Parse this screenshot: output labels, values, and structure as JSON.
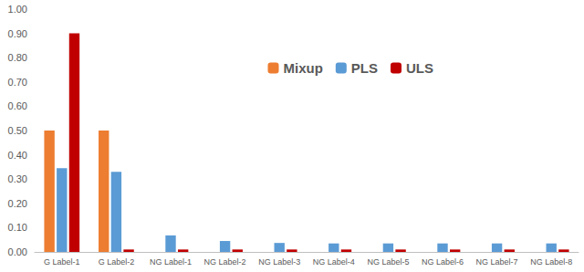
{
  "chart_data": {
    "type": "bar",
    "categories": [
      "G Label-1",
      "G Label-2",
      "NG Label-1",
      "NG Label-2",
      "NG Label-3",
      "NG Label-4",
      "NG Label-5",
      "NG Label-6",
      "NG Label-7",
      "NG Label-8"
    ],
    "series": [
      {
        "name": "Mixup",
        "color": "#ED7D31",
        "values": [
          0.5,
          0.5,
          0,
          0,
          0,
          0,
          0,
          0,
          0,
          0
        ]
      },
      {
        "name": "PLS",
        "color": "#5B9BD5",
        "values": [
          0.345,
          0.33,
          0.068,
          0.045,
          0.037,
          0.035,
          0.035,
          0.035,
          0.035,
          0.035
        ]
      },
      {
        "name": "ULS",
        "color": "#C00000",
        "values": [
          0.9,
          0.01,
          0.01,
          0.01,
          0.01,
          0.01,
          0.01,
          0.01,
          0.01,
          0.01
        ]
      }
    ],
    "ylim": [
      0,
      1
    ],
    "yticks": [
      {
        "value": 0,
        "label": "0.00"
      },
      {
        "value": 0.1,
        "label": "0.10"
      },
      {
        "value": 0.2,
        "label": "0.20"
      },
      {
        "value": 0.3,
        "label": "0.30"
      },
      {
        "value": 0.4,
        "label": "0.40"
      },
      {
        "value": 0.5,
        "label": "0.50"
      },
      {
        "value": 0.6,
        "label": "0.60"
      },
      {
        "value": 0.7,
        "label": "0.70"
      },
      {
        "value": 0.8,
        "label": "0.80"
      },
      {
        "value": 0.9,
        "label": "0.90"
      },
      {
        "value": 1,
        "label": "1.00"
      }
    ],
    "grid": false,
    "legend": "top-right"
  }
}
